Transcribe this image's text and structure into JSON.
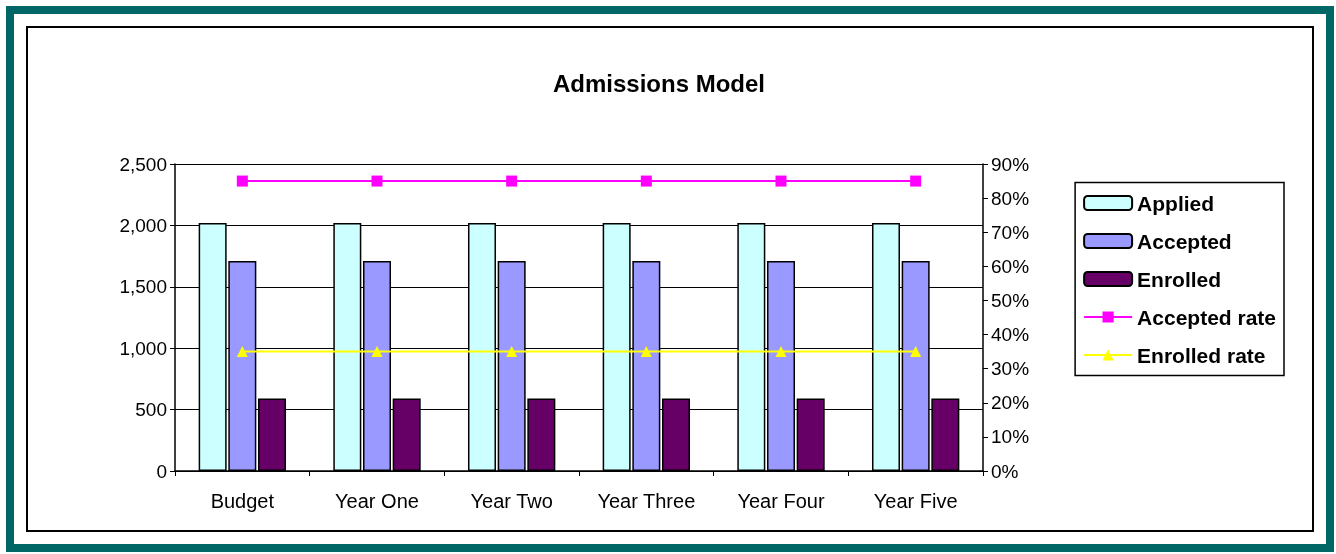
{
  "chart_data": {
    "type": "bar",
    "title": "Admissions Model",
    "categories": [
      "Budget",
      "Year One",
      "Year Two",
      "Year Three",
      "Year Four",
      "Year Five"
    ],
    "series": [
      {
        "name": "Applied",
        "color": "#ccffff",
        "values": [
          2020,
          2020,
          2020,
          2020,
          2020,
          2020
        ]
      },
      {
        "name": "Accepted",
        "color": "#9999ff",
        "values": [
          1710,
          1710,
          1710,
          1710,
          1710,
          1710
        ]
      },
      {
        "name": "Enrolled",
        "color": "#660066",
        "values": [
          590,
          590,
          590,
          590,
          590,
          590
        ]
      },
      {
        "name": "Accepted rate",
        "type": "line",
        "axis": "y2",
        "marker": "square",
        "color": "#ff00ff",
        "values": [
          85,
          85,
          85,
          85,
          85,
          85
        ]
      },
      {
        "name": "Enrolled rate",
        "type": "line",
        "axis": "y2",
        "marker": "triangle",
        "color": "#ffff00",
        "values": [
          35,
          35,
          35,
          35,
          35,
          35
        ]
      }
    ],
    "ylim": [
      0,
      2500
    ],
    "yticks": [
      {
        "value": 0,
        "label": "0"
      },
      {
        "value": 500,
        "label": "500"
      },
      {
        "value": 1000,
        "label": "1,000"
      },
      {
        "value": 1500,
        "label": "1,500"
      },
      {
        "value": 2000,
        "label": "2,000"
      },
      {
        "value": 2500,
        "label": "2,500"
      }
    ],
    "y2lim": [
      0,
      90
    ],
    "y2ticks": [
      {
        "value": 0,
        "label": "0%"
      },
      {
        "value": 10,
        "label": "10%"
      },
      {
        "value": 20,
        "label": "20%"
      },
      {
        "value": 30,
        "label": "30%"
      },
      {
        "value": 40,
        "label": "40%"
      },
      {
        "value": 50,
        "label": "50%"
      },
      {
        "value": 60,
        "label": "60%"
      },
      {
        "value": 70,
        "label": "70%"
      },
      {
        "value": 80,
        "label": "80%"
      },
      {
        "value": 90,
        "label": "90%"
      }
    ],
    "grid": "y",
    "legend": "right"
  }
}
